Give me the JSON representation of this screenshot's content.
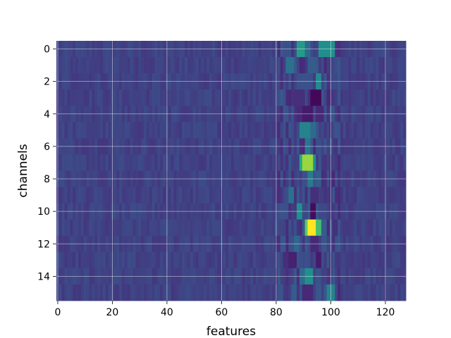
{
  "chart_data": {
    "type": "heatmap",
    "title": "",
    "xlabel": "features",
    "ylabel": "channels",
    "x_ticks": [
      0,
      20,
      40,
      60,
      80,
      100,
      120
    ],
    "y_ticks": [
      0,
      2,
      4,
      6,
      8,
      10,
      12,
      14
    ],
    "xlim": [
      -0.5,
      127.5
    ],
    "ylim": [
      15.5,
      -0.5
    ],
    "n_rows": 16,
    "n_cols": 128,
    "grid": true,
    "colormap": "viridis",
    "background_level": 0.2,
    "hotspots": [
      {
        "row": 0,
        "col_start": 88,
        "col_end": 90,
        "value": 0.55
      },
      {
        "row": 0,
        "col_start": 96,
        "col_end": 101,
        "value": 0.5
      },
      {
        "row": 0,
        "col_start": 91,
        "col_end": 92,
        "value": 0.35
      },
      {
        "row": 1,
        "col_start": 84,
        "col_end": 86,
        "value": 0.38
      },
      {
        "row": 1,
        "col_start": 92,
        "col_end": 94,
        "value": 0.3
      },
      {
        "row": 2,
        "col_start": 95,
        "col_end": 96,
        "value": 0.48
      },
      {
        "row": 2,
        "col_start": 89,
        "col_end": 92,
        "value": 0.25
      },
      {
        "row": 3,
        "col_start": 93,
        "col_end": 96,
        "value": 0.02
      },
      {
        "row": 3,
        "col_start": 87,
        "col_end": 90,
        "value": 0.14
      },
      {
        "row": 4,
        "col_start": 90,
        "col_end": 93,
        "value": 0.08
      },
      {
        "row": 4,
        "col_start": 95,
        "col_end": 97,
        "value": 0.12
      },
      {
        "row": 5,
        "col_start": 89,
        "col_end": 92,
        "value": 0.45
      },
      {
        "row": 5,
        "col_start": 93,
        "col_end": 94,
        "value": 0.35
      },
      {
        "row": 6,
        "col_start": 91,
        "col_end": 92,
        "value": 0.4
      },
      {
        "row": 7,
        "col_start": 90,
        "col_end": 93,
        "value": 0.85
      },
      {
        "row": 7,
        "col_start": 89,
        "col_end": 89,
        "value": 0.6
      },
      {
        "row": 7,
        "col_start": 94,
        "col_end": 94,
        "value": 0.5
      },
      {
        "row": 8,
        "col_start": 92,
        "col_end": 93,
        "value": 0.42
      },
      {
        "row": 8,
        "col_start": 95,
        "col_end": 96,
        "value": 0.3
      },
      {
        "row": 9,
        "col_start": 85,
        "col_end": 86,
        "value": 0.38
      },
      {
        "row": 9,
        "col_start": 93,
        "col_end": 95,
        "value": 0.14
      },
      {
        "row": 10,
        "col_start": 88,
        "col_end": 89,
        "value": 0.5
      },
      {
        "row": 10,
        "col_start": 93,
        "col_end": 94,
        "value": 0.03
      },
      {
        "row": 10,
        "col_start": 96,
        "col_end": 98,
        "value": 0.22
      },
      {
        "row": 11,
        "col_start": 92,
        "col_end": 94,
        "value": 1.0
      },
      {
        "row": 11,
        "col_start": 91,
        "col_end": 91,
        "value": 0.75
      },
      {
        "row": 11,
        "col_start": 95,
        "col_end": 96,
        "value": 0.7
      },
      {
        "row": 11,
        "col_start": 97,
        "col_end": 98,
        "value": 0.3
      },
      {
        "row": 12,
        "col_start": 87,
        "col_end": 88,
        "value": 0.34
      },
      {
        "row": 12,
        "col_start": 93,
        "col_end": 95,
        "value": 0.12
      },
      {
        "row": 13,
        "col_start": 85,
        "col_end": 87,
        "value": 0.1
      },
      {
        "row": 13,
        "col_start": 95,
        "col_end": 96,
        "value": 0.08
      },
      {
        "row": 14,
        "col_start": 91,
        "col_end": 93,
        "value": 0.5
      },
      {
        "row": 14,
        "col_start": 89,
        "col_end": 90,
        "value": 0.35
      },
      {
        "row": 15,
        "col_start": 90,
        "col_end": 93,
        "value": 0.12
      },
      {
        "row": 15,
        "col_start": 99,
        "col_end": 101,
        "value": 0.45
      },
      {
        "row": 15,
        "col_start": 86,
        "col_end": 87,
        "value": 0.3
      }
    ]
  }
}
